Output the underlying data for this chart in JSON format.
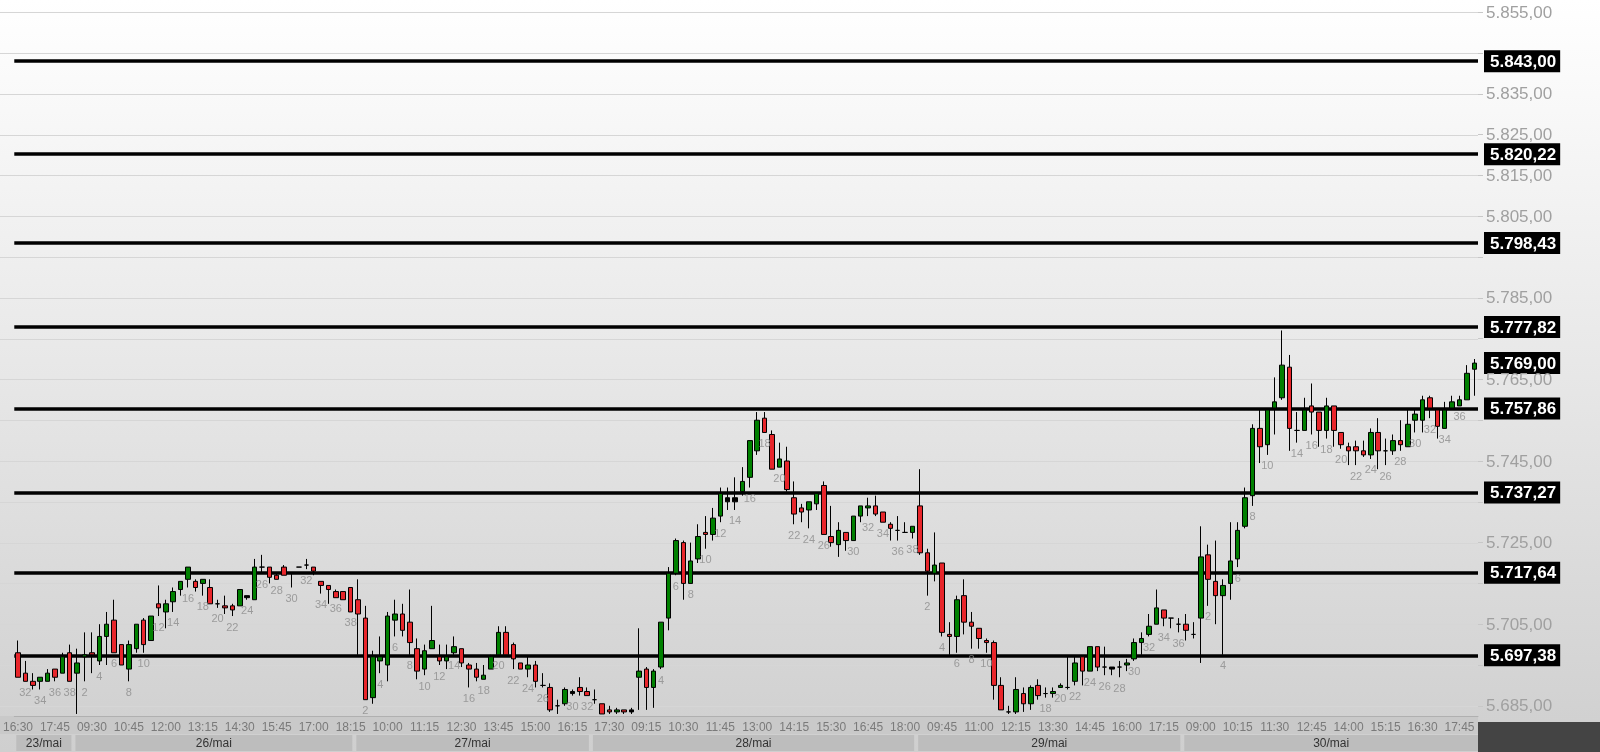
{
  "chart_data": {
    "type": "candlestick",
    "categories": [
      "16:30",
      null,
      null,
      null,
      null,
      "17:45",
      null,
      null,
      null,
      null,
      "09:30",
      null,
      null,
      null,
      null,
      "10:45",
      null,
      null,
      null,
      null,
      "12:00",
      null,
      null,
      null,
      null,
      "13:15",
      null,
      null,
      null,
      null,
      "14:30",
      null,
      null,
      null,
      null,
      "15:45",
      null,
      null,
      null,
      null,
      "17:00",
      null,
      null,
      null,
      null,
      "18:15",
      null,
      null,
      null,
      null,
      "10:00",
      null,
      null,
      null,
      null,
      "11:15",
      null,
      null,
      null,
      null,
      "12:30",
      null,
      null,
      null,
      null,
      "13:45",
      null,
      null,
      null,
      null,
      "15:00",
      null,
      null,
      null,
      null,
      "16:15",
      null,
      null,
      null,
      null,
      "17:30",
      null,
      null,
      null,
      null,
      "09:15",
      null,
      null,
      null,
      null,
      "10:30",
      null,
      null,
      null,
      null,
      "11:45",
      null,
      null,
      null,
      null,
      "13:00",
      null,
      null,
      null,
      null,
      "14:15",
      null,
      null,
      null,
      null,
      "15:30",
      null,
      null,
      null,
      null,
      "16:45",
      null,
      null,
      null,
      null,
      "18:00",
      null,
      null,
      null,
      null,
      "09:45",
      null,
      null,
      null,
      null,
      "11:00",
      null,
      null,
      null,
      null,
      "12:15",
      null,
      null,
      null,
      null,
      "13:30",
      null,
      null,
      null,
      null,
      "14:45",
      null,
      null,
      null,
      null,
      "16:00",
      null,
      null,
      null,
      null,
      "17:15",
      null,
      null,
      null,
      null,
      "09:00",
      null,
      null,
      null,
      null,
      "10:15",
      null,
      null,
      null,
      null,
      "11:30",
      null,
      null,
      null,
      null,
      "12:45",
      null,
      null,
      null,
      null,
      "14:00",
      null,
      null,
      null,
      null,
      "15:15",
      null,
      null,
      null,
      null,
      "16:30",
      null,
      null,
      null,
      null,
      "17:45",
      null,
      null
    ],
    "ohlc": [
      [
        5698,
        5701,
        5692,
        5692
      ],
      [
        5693,
        5696,
        5691,
        5691
      ],
      [
        5691,
        5693,
        5689,
        5690
      ],
      [
        5691,
        5692,
        5689,
        5692
      ],
      [
        5691,
        5694,
        5691,
        5693
      ],
      [
        5694,
        5694,
        5691,
        5692
      ],
      [
        5693,
        5698,
        5693,
        5697
      ],
      [
        5698,
        5700,
        5691,
        5691
      ],
      [
        5693,
        5699,
        5683,
        5695.5
      ],
      [
        5697,
        5703,
        5691,
        5697.5
      ],
      [
        5698,
        5703,
        5693,
        5697.5
      ],
      [
        5696,
        5705,
        5695,
        5702
      ],
      [
        5702,
        5708,
        5695,
        5705
      ],
      [
        5706,
        5711,
        5698,
        5698
      ],
      [
        5700,
        5700,
        5695,
        5695
      ],
      [
        5694,
        5701,
        5691,
        5700
      ],
      [
        5699,
        5705,
        5698,
        5705
      ],
      [
        5706,
        5706.5,
        5698,
        5700
      ],
      [
        5701,
        5707,
        5701,
        5707
      ],
      [
        5710,
        5714.5,
        5707,
        5709
      ],
      [
        5708,
        5711,
        5704,
        5710
      ],
      [
        5710.5,
        5714,
        5708,
        5713
      ],
      [
        5713.5,
        5715.5,
        5712,
        5715.5
      ],
      [
        5716,
        5719,
        5714,
        5719
      ],
      [
        5715.5,
        5716,
        5713,
        5714
      ],
      [
        5715,
        5716,
        5712,
        5716
      ],
      [
        5714,
        5716,
        5710,
        5710
      ],
      [
        5710,
        5711,
        5709,
        5710
      ],
      [
        5709.5,
        5712,
        5707.5,
        5709
      ],
      [
        5709.5,
        5710,
        5707,
        5708.5
      ],
      [
        5709.5,
        5713.5,
        5709.5,
        5713.5
      ],
      [
        5712,
        5712,
        5711,
        5711.5
      ],
      [
        5711,
        5721,
        5711,
        5719
      ],
      [
        5719,
        5722,
        5717.5,
        5719
      ],
      [
        5719,
        5719,
        5715,
        5716.5
      ],
      [
        5717,
        5717.5,
        5716,
        5716
      ],
      [
        5719,
        5719.5,
        5717,
        5717
      ],
      [
        5717.5,
        5717.5,
        5714,
        5717.5
      ],
      [
        5719,
        5719,
        5719,
        5719
      ],
      [
        5719.5,
        5721,
        5718.5,
        5719.5
      ],
      [
        5719,
        5719,
        5717,
        5718
      ],
      [
        5715.5,
        5715.5,
        5712.5,
        5714.5
      ],
      [
        5714.5,
        5714.5,
        5710,
        5713.5
      ],
      [
        5713,
        5713.5,
        5711.5,
        5711.5
      ],
      [
        5713,
        5713,
        5711,
        5711
      ],
      [
        5714,
        5714,
        5708,
        5708
      ],
      [
        5711,
        5716,
        5697.5,
        5707.5
      ],
      [
        5706.5,
        5709.5,
        5686.5,
        5686.5
      ],
      [
        5687,
        5698.5,
        5685.5,
        5697
      ],
      [
        5696,
        5702,
        5693,
        5697
      ],
      [
        5695,
        5708,
        5691,
        5707
      ],
      [
        5706,
        5711,
        5702,
        5707.5
      ],
      [
        5707.5,
        5710,
        5702,
        5703.5
      ],
      [
        5705.5,
        5713.5,
        5697.5,
        5700.5
      ],
      [
        5699,
        5701.5,
        5691.5,
        5693.5
      ],
      [
        5694,
        5700,
        5692.5,
        5698.5
      ],
      [
        5699,
        5709.5,
        5699,
        5701
      ],
      [
        5697,
        5700,
        5695,
        5696
      ],
      [
        5696,
        5700,
        5694,
        5697
      ],
      [
        5698,
        5702,
        5697.5,
        5699.5
      ],
      [
        5699,
        5699,
        5694.5,
        5695.5
      ],
      [
        5695,
        5695.5,
        5689.5,
        5694
      ],
      [
        5694,
        5695.5,
        5691,
        5692
      ],
      [
        5691.5,
        5695,
        5691.5,
        5692.5
      ],
      [
        5694,
        5697.5,
        5694,
        5697
      ],
      [
        5697.5,
        5704.5,
        5697.5,
        5703
      ],
      [
        5703,
        5704.5,
        5697.5,
        5697.5
      ],
      [
        5700,
        5700.5,
        5694,
        5696.5
      ],
      [
        5695.5,
        5695.5,
        5694,
        5694
      ],
      [
        5694,
        5697,
        5692,
        5695
      ],
      [
        5695,
        5696,
        5689.5,
        5691
      ],
      [
        5690,
        5693,
        5689.5,
        5690
      ],
      [
        5689.5,
        5690.5,
        5683.5,
        5684
      ],
      [
        5685,
        5686.5,
        5683,
        5685
      ],
      [
        5685.5,
        5689.5,
        5685,
        5689
      ],
      [
        5688.5,
        5689,
        5687.5,
        5688
      ],
      [
        5689.5,
        5692,
        5687.5,
        5688.5
      ],
      [
        5688.5,
        5689.5,
        5687.5,
        5687.5
      ],
      [
        5686.5,
        5689,
        5685.5,
        5686.5
      ],
      [
        5685.5,
        5685.5,
        5683,
        5683
      ],
      [
        5684,
        5685,
        5683,
        5683.5
      ],
      [
        5683.5,
        5684.5,
        5683,
        5684
      ],
      [
        5684,
        5684,
        5683,
        5683.5
      ],
      [
        5684,
        5684.5,
        5683,
        5683.5
      ],
      [
        5692,
        5704,
        5684,
        5693.5
      ],
      [
        5694,
        5694.5,
        5684,
        5689.5
      ],
      [
        5689.5,
        5694,
        5684.5,
        5693.5
      ],
      [
        5694.5,
        5705.5,
        5694,
        5705.5
      ],
      [
        5706.5,
        5719,
        5703.5,
        5717.5
      ],
      [
        5717.5,
        5726,
        5717,
        5725.5
      ],
      [
        5725,
        5725.5,
        5711,
        5715
      ],
      [
        5715,
        5725,
        5715,
        5720.5
      ],
      [
        5721,
        5729.5,
        5720,
        5726.5
      ],
      [
        5727.5,
        5731.5,
        5723.5,
        5727
      ],
      [
        5727,
        5733.5,
        5725.5,
        5731
      ],
      [
        5731.5,
        5738.5,
        5730,
        5737
      ],
      [
        5736,
        5738.5,
        5733,
        5735
      ],
      [
        5735,
        5741,
        5733,
        5736
      ],
      [
        5737.5,
        5743.5,
        5736.5,
        5740
      ],
      [
        5741,
        5750,
        5738.5,
        5750
      ],
      [
        5747.5,
        5757,
        5746.5,
        5755
      ],
      [
        5755.5,
        5757,
        5752,
        5752
      ],
      [
        5751.5,
        5752.5,
        5743,
        5743
      ],
      [
        5743.5,
        5749.5,
        5743.5,
        5745.5
      ],
      [
        5745,
        5748.5,
        5737.5,
        5738
      ],
      [
        5736,
        5740,
        5729.5,
        5732
      ],
      [
        5733.5,
        5734.5,
        5730,
        5732.5
      ],
      [
        5733,
        5735,
        5728.5,
        5735
      ],
      [
        5734.5,
        5737,
        5733,
        5737
      ],
      [
        5739,
        5740,
        5727,
        5727
      ],
      [
        5726.5,
        5734,
        5724,
        5725
      ],
      [
        5724.5,
        5730,
        5721.5,
        5728
      ],
      [
        5727.5,
        5727.5,
        5723,
        5725.5
      ],
      [
        5725.5,
        5731.5,
        5725.5,
        5731.5
      ],
      [
        5731.5,
        5734,
        5730,
        5734
      ],
      [
        5733.5,
        5736,
        5731.5,
        5734
      ],
      [
        5734,
        5736.5,
        5731.5,
        5732
      ],
      [
        5732.5,
        5732.5,
        5730,
        5730
      ],
      [
        5729.5,
        5730,
        5725.5,
        5728.5
      ],
      [
        5728,
        5731.5,
        5725.5,
        5728
      ],
      [
        5727.5,
        5730,
        5727.5,
        5727.5
      ],
      [
        5727.5,
        5729,
        5726,
        5729
      ],
      [
        5734,
        5743,
        5722,
        5722.5
      ],
      [
        5722.5,
        5723.5,
        5712,
        5718
      ],
      [
        5717.5,
        5727.5,
        5715.5,
        5719.5
      ],
      [
        5720,
        5720,
        5702,
        5703
      ],
      [
        5702.5,
        5705.5,
        5697.5,
        5702
      ],
      [
        5702,
        5712,
        5698,
        5711
      ],
      [
        5712,
        5716,
        5702.5,
        5705.5
      ],
      [
        5705.5,
        5708,
        5699,
        5704.5
      ],
      [
        5704,
        5704,
        5699,
        5701.5
      ],
      [
        5701,
        5701.5,
        5698,
        5700.5
      ],
      [
        5700.5,
        5701,
        5686.5,
        5690
      ],
      [
        5690,
        5692,
        5684,
        5684
      ],
      [
        5683.5,
        5685,
        5683,
        5683.5
      ],
      [
        5683.5,
        5692,
        5683,
        5689
      ],
      [
        5688,
        5689.5,
        5683.5,
        5685.5
      ],
      [
        5685.5,
        5690,
        5684,
        5689.5
      ],
      [
        5690,
        5691.5,
        5686.5,
        5687.5
      ],
      [
        5688,
        5689.5,
        5687,
        5688
      ],
      [
        5688,
        5689.5,
        5687,
        5688.5
      ],
      [
        5689.5,
        5690.5,
        5689.5,
        5690
      ],
      [
        5689.5,
        5697,
        5689,
        5689.5
      ],
      [
        5691,
        5697,
        5690,
        5695.5
      ],
      [
        5697,
        5697,
        5690,
        5693.5
      ],
      [
        5693.5,
        5699.5,
        5693.5,
        5699.5
      ],
      [
        5699.5,
        5699.5,
        5693.5,
        5694.5
      ],
      [
        5694.5,
        5699.5,
        5692.5,
        5694.5
      ],
      [
        5694.5,
        5694.5,
        5692.5,
        5694
      ],
      [
        5694.5,
        5696,
        5692,
        5694.5
      ],
      [
        5695,
        5696.5,
        5693.5,
        5695.5
      ],
      [
        5696.5,
        5701.5,
        5696,
        5700.5
      ],
      [
        5700.5,
        5703,
        5697.5,
        5701.5
      ],
      [
        5702.5,
        5707.5,
        5702,
        5704.5
      ],
      [
        5705,
        5713.5,
        5705,
        5709
      ],
      [
        5708.5,
        5708.5,
        5704.5,
        5706.5
      ],
      [
        5706.5,
        5706.5,
        5704,
        5706.5
      ],
      [
        5705,
        5706.5,
        5703,
        5705
      ],
      [
        5705,
        5707.5,
        5701,
        5703.5
      ],
      [
        5702.5,
        5705.5,
        5701.5,
        5702.5
      ],
      [
        5706.5,
        5729,
        5695.5,
        5721.5
      ],
      [
        5722,
        5724.5,
        5709.5,
        5716
      ],
      [
        5715.5,
        5725.5,
        5705,
        5712
      ],
      [
        5712,
        5716,
        5697.5,
        5714.5
      ],
      [
        5715,
        5730,
        5711,
        5720.5
      ],
      [
        5721,
        5730,
        5719,
        5728
      ],
      [
        5729,
        5738.5,
        5728.5,
        5736
      ],
      [
        5736.5,
        5754,
        5734,
        5753
      ],
      [
        5753,
        5757.5,
        5744.5,
        5748.5
      ],
      [
        5749,
        5757.5,
        5746.5,
        5757.5
      ],
      [
        5758,
        5765.5,
        5751.5,
        5759.5
      ],
      [
        5760.5,
        5777,
        5760,
        5768.5
      ],
      [
        5768,
        5771,
        5747.5,
        5753
      ],
      [
        5752.5,
        5757,
        5749.5,
        5752.5
      ],
      [
        5752.5,
        5760.5,
        5752.5,
        5757.5
      ],
      [
        5758.5,
        5764,
        5751.5,
        5757
      ],
      [
        5757,
        5757,
        5748.5,
        5752.5
      ],
      [
        5752.5,
        5760.5,
        5750.5,
        5758.5
      ],
      [
        5758.5,
        5758.5,
        5748.5,
        5752.5
      ],
      [
        5752,
        5752,
        5748,
        5749
      ],
      [
        5748.5,
        5749.5,
        5744,
        5747.5
      ],
      [
        5748.5,
        5750,
        5744,
        5747.5
      ],
      [
        5747.5,
        5750,
        5746,
        5746.5
      ],
      [
        5746.5,
        5753,
        5745.5,
        5752
      ],
      [
        5752,
        5755.5,
        5743,
        5747.5
      ],
      [
        5747.5,
        5750.5,
        5744,
        5747.5
      ],
      [
        5747.5,
        5751.5,
        5746.5,
        5750
      ],
      [
        5750,
        5755,
        5747.5,
        5749
      ],
      [
        5748.5,
        5757.5,
        5748.5,
        5754
      ],
      [
        5755,
        5757.5,
        5752,
        5756.5
      ],
      [
        5755,
        5761,
        5752,
        5760
      ],
      [
        5760.5,
        5761,
        5755.5,
        5758
      ],
      [
        5757.5,
        5757.5,
        5750.5,
        5753.5
      ],
      [
        5753,
        5759.5,
        5753,
        5757.5
      ],
      [
        5758,
        5761,
        5758,
        5759.5
      ],
      [
        5758.5,
        5761,
        5758.5,
        5760
      ],
      [
        5760,
        5768.5,
        5760,
        5766.5
      ],
      [
        5767.5,
        5770,
        5761,
        5769
      ]
    ],
    "colors": [
      "#e8262b",
      "#e8262b",
      "#e8262b",
      "#008000",
      "#008000",
      "#e8262b",
      "#008000",
      "#e8262b",
      "#008000",
      "#008000",
      "#e8262b",
      "#008000",
      "#008000",
      "#e8262b",
      "#e8262b",
      "#008000",
      "#008000",
      "#e8262b",
      "#008000",
      "#e8262b",
      "#008000",
      "#008000",
      "#008000",
      "#008000",
      "#e8262b",
      "#008000",
      "#e8262b",
      "#000000",
      "#e8262b",
      "#e8262b",
      "#008000",
      "#000000",
      "#008000",
      "#000000",
      "#e8262b",
      "#e8262b",
      "#e8262b",
      "#000000",
      "#000000",
      "#000000",
      "#e8262b",
      "#e8262b",
      "#e8262b",
      "#e8262b",
      "#e8262b",
      "#e8262b",
      "#e8262b",
      "#e8262b",
      "#008000",
      "#008000",
      "#008000",
      "#008000",
      "#e8262b",
      "#e8262b",
      "#e8262b",
      "#008000",
      "#008000",
      "#e8262b",
      "#008000",
      "#008000",
      "#e8262b",
      "#e8262b",
      "#e8262b",
      "#008000",
      "#008000",
      "#008000",
      "#e8262b",
      "#e8262b",
      "#e8262b",
      "#008000",
      "#e8262b",
      "#000000",
      "#e8262b",
      "#000000",
      "#008000",
      "#000000",
      "#e8262b",
      "#e8262b",
      "#000000",
      "#e8262b",
      "#e8262b",
      "#008000",
      "#e8262b",
      "#000000",
      "#008000",
      "#e8262b",
      "#008000",
      "#008000",
      "#008000",
      "#008000",
      "#e8262b",
      "#008000",
      "#008000",
      "#e8262b",
      "#008000",
      "#008000",
      "#000000",
      "#000000",
      "#008000",
      "#008000",
      "#008000",
      "#e8262b",
      "#e8262b",
      "#008000",
      "#e8262b",
      "#e8262b",
      "#e8262b",
      "#008000",
      "#008000",
      "#e8262b",
      "#e8262b",
      "#008000",
      "#e8262b",
      "#008000",
      "#008000",
      "#008000",
      "#e8262b",
      "#e8262b",
      "#e8262b",
      "#000000",
      "#000000",
      "#008000",
      "#e8262b",
      "#e8262b",
      "#008000",
      "#e8262b",
      "#e8262b",
      "#008000",
      "#e8262b",
      "#e8262b",
      "#e8262b",
      "#e8262b",
      "#e8262b",
      "#e8262b",
      "#000000",
      "#008000",
      "#e8262b",
      "#008000",
      "#e8262b",
      "#000000",
      "#008000",
      "#008000",
      "#000000",
      "#008000",
      "#e8262b",
      "#008000",
      "#e8262b",
      "#000000",
      "#000000",
      "#000000",
      "#008000",
      "#008000",
      "#008000",
      "#008000",
      "#008000",
      "#e8262b",
      "#000000",
      "#000000",
      "#e8262b",
      "#000000",
      "#008000",
      "#e8262b",
      "#e8262b",
      "#008000",
      "#008000",
      "#008000",
      "#008000",
      "#008000",
      "#e8262b",
      "#008000",
      "#008000",
      "#008000",
      "#e8262b",
      "#000000",
      "#008000",
      "#e8262b",
      "#e8262b",
      "#008000",
      "#e8262b",
      "#e8262b",
      "#e8262b",
      "#e8262b",
      "#e8262b",
      "#008000",
      "#e8262b",
      "#000000",
      "#008000",
      "#e8262b",
      "#008000",
      "#008000",
      "#008000",
      "#e8262b",
      "#e8262b",
      "#008000",
      "#008000",
      "#008000",
      "#008000",
      "#008000"
    ],
    "value_labels": [
      null,
      "32",
      null,
      "34",
      null,
      "36",
      null,
      "38",
      null,
      "2",
      null,
      "4",
      null,
      "6",
      null,
      "8",
      null,
      "10",
      null,
      "12",
      null,
      "14",
      null,
      "16",
      null,
      "18",
      null,
      "20",
      null,
      "22",
      null,
      "24",
      null,
      "26",
      null,
      "28",
      null,
      "30",
      null,
      "32",
      null,
      "34",
      null,
      "36",
      null,
      "38",
      null,
      "2",
      null,
      "4",
      null,
      "6",
      null,
      "8",
      null,
      "10",
      null,
      "12",
      null,
      "14",
      null,
      "16",
      null,
      "18",
      null,
      "20",
      null,
      "22",
      null,
      "24",
      null,
      "26",
      null,
      null,
      null,
      "30",
      null,
      "32",
      null,
      null,
      null,
      null,
      null,
      null,
      null,
      null,
      null,
      "4",
      null,
      "6",
      null,
      "8",
      null,
      "10",
      null,
      "12",
      null,
      "14",
      null,
      "16",
      null,
      "18",
      null,
      "20",
      null,
      "22",
      null,
      "24",
      null,
      "26",
      null,
      null,
      null,
      "30",
      null,
      "32",
      null,
      "34",
      null,
      "36",
      null,
      "38",
      null,
      "2",
      null,
      "4",
      null,
      "6",
      null,
      "8",
      null,
      "10",
      null,
      null,
      null,
      null,
      null,
      null,
      null,
      "18",
      null,
      "20",
      null,
      "22",
      null,
      "24",
      null,
      "26",
      null,
      "28",
      null,
      "30",
      null,
      "32",
      null,
      "34",
      null,
      "36",
      null,
      null,
      null,
      "2",
      null,
      "4",
      null,
      "6",
      null,
      "8",
      null,
      "10",
      null,
      null,
      null,
      "14",
      null,
      "16",
      null,
      "18",
      null,
      "20",
      null,
      "22",
      null,
      "24",
      null,
      "26",
      null,
      "28",
      null,
      "30",
      null,
      "32",
      null,
      "34",
      null,
      "36",
      null,
      null
    ],
    "ylim": [
      5682.5,
      5858
    ],
    "yticks": [
      {
        "value": 5685,
        "label": "5.685,00"
      },
      {
        "value": 5695,
        "label": null
      },
      {
        "value": 5705,
        "label": "5.705,00"
      },
      {
        "value": 5715,
        "label": null
      },
      {
        "value": 5725,
        "label": "5.725,00"
      },
      {
        "value": 5735,
        "label": null
      },
      {
        "value": 5745,
        "label": "5.745,00"
      },
      {
        "value": 5755,
        "label": null
      },
      {
        "value": 5765,
        "label": "5.765,00"
      },
      {
        "value": 5775,
        "label": null
      },
      {
        "value": 5785,
        "label": "5.785,00"
      },
      {
        "value": 5795,
        "label": null
      },
      {
        "value": 5805,
        "label": "5.805,00"
      },
      {
        "value": 5815,
        "label": "5.815,00"
      },
      {
        "value": 5825,
        "label": "5.825,00"
      },
      {
        "value": 5835,
        "label": "5.835,00"
      },
      {
        "value": 5845,
        "label": null
      },
      {
        "value": 5855,
        "label": "5.855,00"
      }
    ],
    "grid": "y",
    "ref_lines": [
      {
        "axis": "y",
        "value": 5843,
        "label": "5.843,00",
        "color": "#000000"
      },
      {
        "axis": "y",
        "value": 5820.22,
        "label": "5.820,22",
        "color": "#000000"
      },
      {
        "axis": "y",
        "value": 5798.43,
        "label": "5.798,43",
        "color": "#000000"
      },
      {
        "axis": "y",
        "value": 5777.82,
        "label": "5.777,82",
        "color": "#000000"
      },
      {
        "axis": "y",
        "value": 5757.86,
        "label": "5.757,86",
        "color": "#000000"
      },
      {
        "axis": "y",
        "value": 5737.27,
        "label": "5.737,27",
        "color": "#000000"
      },
      {
        "axis": "y",
        "value": 5717.64,
        "label": "5.717,64",
        "color": "#000000"
      },
      {
        "axis": "y",
        "value": 5697.38,
        "label": "5.697,38",
        "color": "#000000"
      }
    ],
    "annotations": [
      "5.769,00",
      "23/mai",
      "26/mai",
      "27/mai",
      "28/mai",
      "29/mai",
      "30/mai"
    ]
  }
}
